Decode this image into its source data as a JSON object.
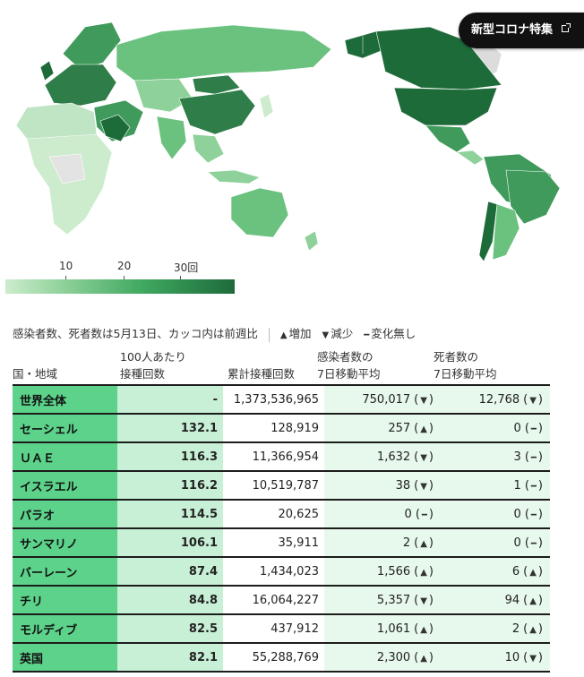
{
  "header": {
    "covid_button_label": "新型コロナ特集"
  },
  "legend": {
    "ticks": [
      "10",
      "20",
      "30回"
    ],
    "colors": [
      "#cdeccd",
      "#8fd19a",
      "#3fa860",
      "#1e6b3a"
    ]
  },
  "note": {
    "text": "感染者数、死者数は5月13日、カッコ内は前週比",
    "up_label": "増加",
    "down_label": "減少",
    "same_label": "変化無し"
  },
  "columns": {
    "country": "国・地域",
    "per100_line1": "100人あたり",
    "per100_line2": "接種回数",
    "total": "累計接種回数",
    "cases_line1": "感染者数の",
    "cases_line2": "7日移動平均",
    "deaths_line1": "死者数の",
    "deaths_line2": "7日移動平均"
  },
  "rows": [
    {
      "name": "世界全体",
      "per100": "-",
      "total": "1,373,536,965",
      "cases": "750,017",
      "cases_trend": "▼",
      "deaths": "12,768",
      "deaths_trend": "▼"
    },
    {
      "name": "セーシェル",
      "per100": "132.1",
      "total": "128,919",
      "cases": "257",
      "cases_trend": "▲",
      "deaths": "0",
      "deaths_trend": "━"
    },
    {
      "name": "ＵＡＥ",
      "per100": "116.3",
      "total": "11,366,954",
      "cases": "1,632",
      "cases_trend": "▼",
      "deaths": "3",
      "deaths_trend": "━"
    },
    {
      "name": "イスラエル",
      "per100": "116.2",
      "total": "10,519,787",
      "cases": "38",
      "cases_trend": "▼",
      "deaths": "1",
      "deaths_trend": "━"
    },
    {
      "name": "パラオ",
      "per100": "114.5",
      "total": "20,625",
      "cases": "0",
      "cases_trend": "━",
      "deaths": "0",
      "deaths_trend": "━"
    },
    {
      "name": "サンマリノ",
      "per100": "106.1",
      "total": "35,911",
      "cases": "2",
      "cases_trend": "▲",
      "deaths": "0",
      "deaths_trend": "━"
    },
    {
      "name": "バーレーン",
      "per100": "87.4",
      "total": "1,434,023",
      "cases": "1,566",
      "cases_trend": "▲",
      "deaths": "6",
      "deaths_trend": "▲"
    },
    {
      "name": "チリ",
      "per100": "84.8",
      "total": "16,064,227",
      "cases": "5,357",
      "cases_trend": "▼",
      "deaths": "94",
      "deaths_trend": "▲"
    },
    {
      "name": "モルディブ",
      "per100": "82.5",
      "total": "437,912",
      "cases": "1,061",
      "cases_trend": "▲",
      "deaths": "2",
      "deaths_trend": "▲"
    },
    {
      "name": "英国",
      "per100": "82.1",
      "total": "55,288,769",
      "cases": "2,300",
      "cases_trend": "▲",
      "deaths": "10",
      "deaths_trend": "▼"
    }
  ]
}
